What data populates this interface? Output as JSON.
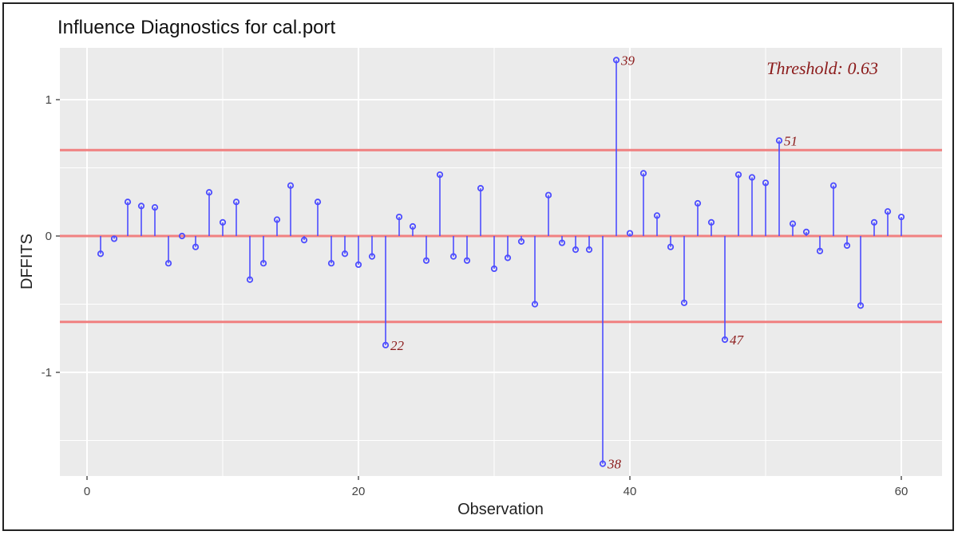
{
  "chart_data": {
    "type": "lollipop",
    "title": "Influence Diagnostics for cal.port",
    "xlabel": "Observation",
    "ylabel": "DFFITS",
    "xlim": [
      -2,
      63
    ],
    "ylim": [
      -1.76,
      1.38
    ],
    "xticks": [
      0,
      20,
      40,
      60
    ],
    "yticks": [
      -1,
      0,
      1
    ],
    "grid": true,
    "threshold": 0.63,
    "threshold_label": "Threshold: 0.63",
    "colors": {
      "stem": "#4d4dff",
      "threshold_line": "#f08080",
      "label": "#8b1a1a",
      "panel": "#ebebeb",
      "grid": "#ffffff"
    },
    "x": [
      1,
      2,
      3,
      4,
      5,
      6,
      7,
      8,
      9,
      10,
      11,
      12,
      13,
      14,
      15,
      16,
      17,
      18,
      19,
      20,
      21,
      22,
      23,
      24,
      25,
      26,
      27,
      28,
      29,
      30,
      31,
      32,
      33,
      34,
      35,
      36,
      37,
      38,
      39,
      40,
      41,
      42,
      43,
      44,
      45,
      46,
      47,
      48,
      49,
      50,
      51,
      52,
      53,
      54,
      55,
      56,
      57,
      58,
      59,
      60
    ],
    "values": [
      -0.13,
      -0.02,
      0.25,
      0.22,
      0.21,
      -0.2,
      0,
      -0.08,
      0.32,
      0.1,
      0.25,
      -0.32,
      -0.2,
      0.12,
      0.37,
      -0.03,
      0.25,
      -0.2,
      -0.13,
      -0.21,
      -0.15,
      -0.8,
      0.14,
      0.07,
      -0.18,
      0.45,
      -0.15,
      -0.18,
      0.35,
      -0.24,
      -0.16,
      -0.04,
      -0.5,
      0.3,
      -0.05,
      -0.1,
      -0.1,
      -1.67,
      1.29,
      0.02,
      0.46,
      0.15,
      -0.08,
      -0.49,
      0.24,
      0.1,
      -0.76,
      0.45,
      0.43,
      0.39,
      0.7,
      0.09,
      0.03,
      -0.11,
      0.37,
      -0.07,
      -0.51,
      0.1,
      0.18,
      0.14
    ],
    "point_labels": [
      {
        "x": 22,
        "label": "22"
      },
      {
        "x": 38,
        "label": "38"
      },
      {
        "x": 39,
        "label": "39"
      },
      {
        "x": 47,
        "label": "47"
      },
      {
        "x": 51,
        "label": "51"
      }
    ]
  }
}
